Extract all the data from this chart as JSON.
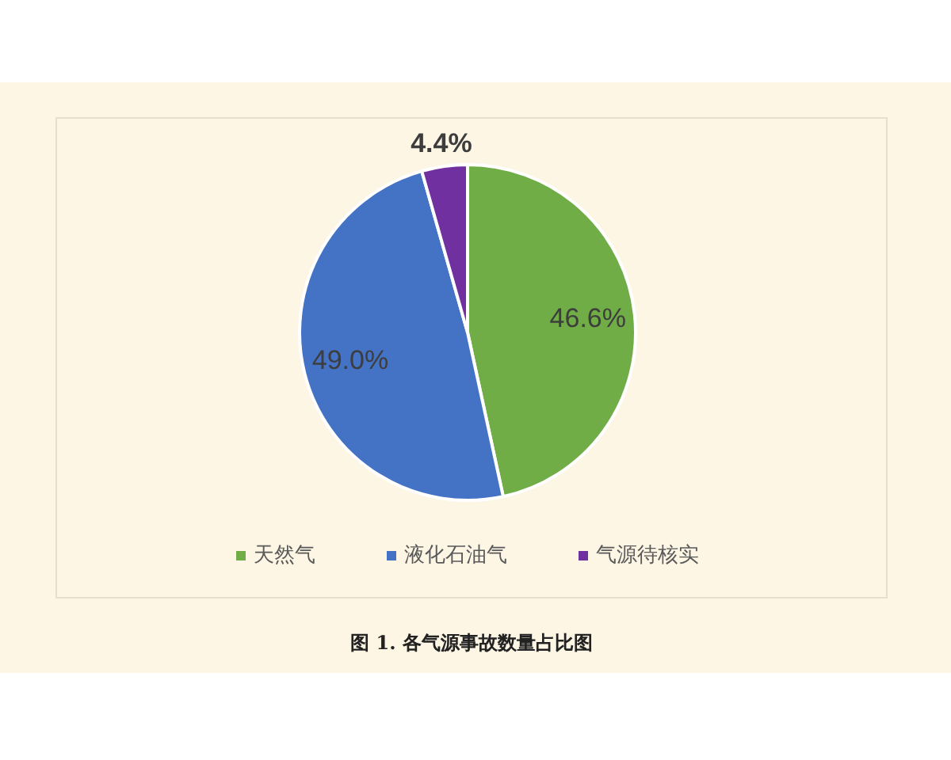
{
  "chart_data": {
    "type": "pie",
    "categories": [
      "天然气",
      "液化石油气",
      "气源待核实"
    ],
    "values": [
      46.6,
      49.0,
      4.4
    ],
    "colors": [
      "#70ad47",
      "#4472c4",
      "#7030a0"
    ],
    "value_labels": [
      "46.6%",
      "49.0%",
      "4.4%"
    ],
    "legend": "bottom",
    "annotations": [
      "图 1. 各气源事故数量占比图"
    ]
  }
}
